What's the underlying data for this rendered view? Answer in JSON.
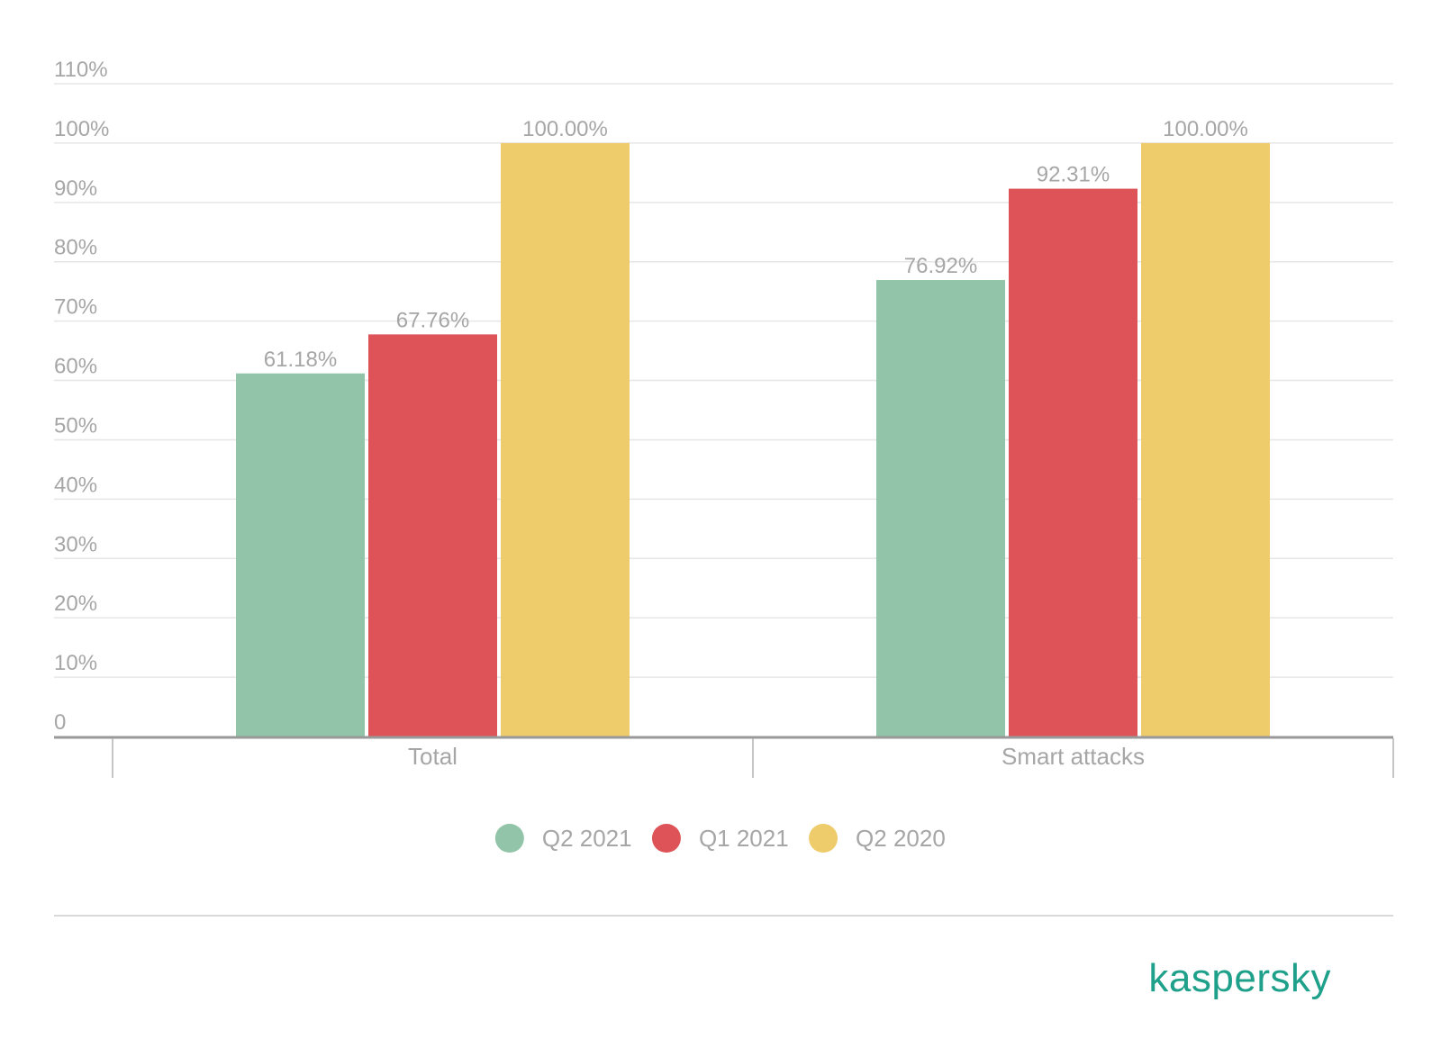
{
  "chart_data": {
    "type": "bar",
    "categories": [
      "Total",
      "Smart attacks"
    ],
    "series": [
      {
        "name": "Q2 2021",
        "values": [
          61.18,
          76.92
        ],
        "value_labels": [
          "61.18%",
          "76.92%"
        ],
        "color": "#91c4a8"
      },
      {
        "name": "Q1 2021",
        "values": [
          67.76,
          92.31
        ],
        "value_labels": [
          "67.76%",
          "92.31%"
        ],
        "color": "#dd5357"
      },
      {
        "name": "Q2 2020",
        "values": [
          100.0,
          100.0
        ],
        "value_labels": [
          "100.00%",
          "100.00%"
        ],
        "color": "#eecc6b"
      }
    ],
    "ylim": [
      0,
      110
    ],
    "yticks": [
      0,
      10,
      20,
      30,
      40,
      50,
      60,
      70,
      80,
      90,
      100,
      110
    ],
    "ytick_labels": [
      "0",
      "10%",
      "20%",
      "30%",
      "40%",
      "50%",
      "60%",
      "70%",
      "80%",
      "90%",
      "100%",
      "110%"
    ],
    "grid": true,
    "legend_position": "bottom"
  },
  "brand": {
    "logo_text": "kaspersky",
    "color": "#1ea08a"
  }
}
